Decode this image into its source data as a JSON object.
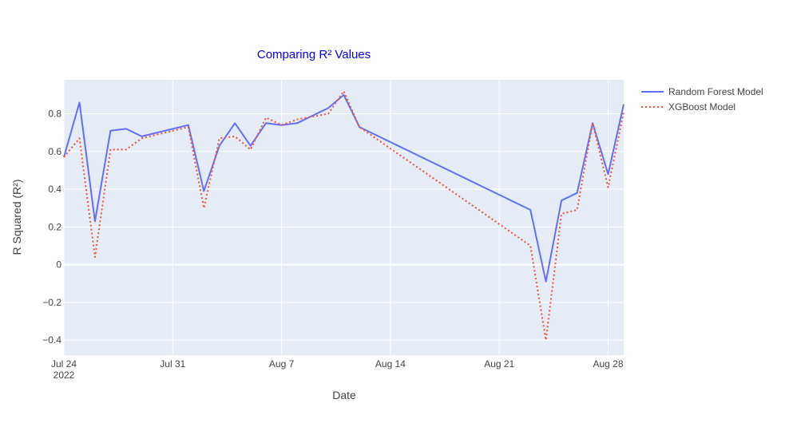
{
  "chart_data": {
    "type": "line",
    "title": "Comparing R² Values",
    "xlabel": "Date",
    "ylabel": "R Squared (R²)",
    "x": [
      "2022-07-24",
      "2022-07-25",
      "2022-07-26",
      "2022-07-27",
      "2022-07-28",
      "2022-07-29",
      "2022-08-01",
      "2022-08-02",
      "2022-08-03",
      "2022-08-04",
      "2022-08-05",
      "2022-08-06",
      "2022-08-07",
      "2022-08-08",
      "2022-08-10",
      "2022-08-11",
      "2022-08-12",
      "2022-08-23",
      "2022-08-24",
      "2022-08-25",
      "2022-08-26",
      "2022-08-27",
      "2022-08-28",
      "2022-08-29"
    ],
    "series": [
      {
        "name": "Random Forest Model",
        "color": "#636efa",
        "dash": "solid",
        "values": [
          0.57,
          0.86,
          0.23,
          0.71,
          0.72,
          0.68,
          0.74,
          0.39,
          0.63,
          0.75,
          0.63,
          0.75,
          0.74,
          0.75,
          0.83,
          0.9,
          0.73,
          0.29,
          -0.09,
          0.34,
          0.38,
          0.75,
          0.48,
          0.85
        ]
      },
      {
        "name": "XGBoost Model",
        "color": "#ef553b",
        "dash": "dot",
        "values": [
          0.57,
          0.67,
          0.04,
          0.61,
          0.61,
          0.67,
          0.73,
          0.3,
          0.67,
          0.68,
          0.61,
          0.78,
          0.74,
          0.77,
          0.8,
          0.92,
          0.73,
          0.1,
          -0.4,
          0.27,
          0.29,
          0.75,
          0.41,
          0.81
        ]
      }
    ],
    "xlim": [
      "2022-07-24",
      "2022-08-29"
    ],
    "ylim": [
      -0.48,
      0.98
    ],
    "xticks": [
      {
        "date": "2022-07-24",
        "label": "Jul 24",
        "sublabel": "2022"
      },
      {
        "date": "2022-07-31",
        "label": "Jul 31"
      },
      {
        "date": "2022-08-07",
        "label": "Aug 7"
      },
      {
        "date": "2022-08-14",
        "label": "Aug 14"
      },
      {
        "date": "2022-08-21",
        "label": "Aug 21"
      },
      {
        "date": "2022-08-28",
        "label": "Aug 28"
      }
    ],
    "yticks": [
      {
        "value": -0.4,
        "label": "−0.4"
      },
      {
        "value": -0.2,
        "label": "−0.2"
      },
      {
        "value": 0,
        "label": "0"
      },
      {
        "value": 0.2,
        "label": "0.2"
      },
      {
        "value": 0.4,
        "label": "0.4"
      },
      {
        "value": 0.6,
        "label": "0.6"
      },
      {
        "value": 0.8,
        "label": "0.8"
      }
    ],
    "grid": true,
    "legend": "top-right",
    "colors": {
      "plot_background": "#e5ecf6",
      "grid": "#ffffff",
      "title": "#0000ff",
      "axis_text": "#444444"
    }
  }
}
